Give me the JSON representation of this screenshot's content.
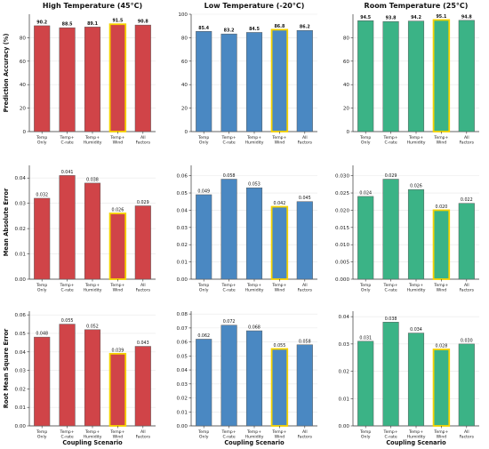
{
  "columns": [
    {
      "title": "High Temperature (45°C)",
      "color": "#d04448"
    },
    {
      "title": "Low Temperature (-20°C)",
      "color": "#4a88c2"
    },
    {
      "title": "Room Temperature (25°C)",
      "color": "#3bb386"
    }
  ],
  "highlight": {
    "category": "Temp+ Wind",
    "color": "#f5d200"
  },
  "chart_data": [
    {
      "type": "bar",
      "row": "Prediction Accuracy (%)",
      "column": "High Temperature (45°C)",
      "title": "High Temperature (45°C)",
      "ylabel": "Prediction Accuracy (%)",
      "xlabel": "",
      "categories": [
        "Temp Only",
        "Temp+ C-rate",
        "Temp+ Humidity",
        "Temp+ Wind",
        "All Factors"
      ],
      "values": [
        90.2,
        88.5,
        89.1,
        91.5,
        90.8
      ],
      "labels": [
        "90.2",
        "88.5",
        "89.1",
        "91.5",
        "90.8"
      ],
      "ylim": [
        0,
        100
      ],
      "yticks": [
        0,
        20,
        40,
        60,
        80
      ],
      "grid": true
    },
    {
      "type": "bar",
      "row": "Prediction Accuracy (%)",
      "column": "Low Temperature (-20°C)",
      "title": "Low Temperature (-20°C)",
      "ylabel": "",
      "xlabel": "",
      "categories": [
        "Temp Only",
        "Temp+ C-rate",
        "Temp+ Humidity",
        "Temp+ Wind",
        "All Factors"
      ],
      "values": [
        85.4,
        83.2,
        84.5,
        86.8,
        86.2
      ],
      "labels": [
        "85.4",
        "83.2",
        "84.5",
        "86.8",
        "86.2"
      ],
      "ylim": [
        0,
        100
      ],
      "yticks": [
        0,
        20,
        40,
        60,
        80,
        100
      ],
      "grid": true
    },
    {
      "type": "bar",
      "row": "Prediction Accuracy (%)",
      "column": "Room Temperature (25°C)",
      "title": "Room Temperature (25°C)",
      "ylabel": "",
      "xlabel": "",
      "categories": [
        "Temp Only",
        "Temp+ C-rate",
        "Temp+ Humidity",
        "Temp+ Wind",
        "All Factors"
      ],
      "values": [
        94.5,
        93.8,
        94.2,
        95.1,
        94.8
      ],
      "labels": [
        "94.5",
        "93.8",
        "94.2",
        "95.1",
        "94.8"
      ],
      "ylim": [
        0,
        100
      ],
      "yticks": [
        0,
        20,
        40,
        60,
        80
      ],
      "grid": true
    },
    {
      "type": "bar",
      "row": "Mean Absolute Error",
      "column": "High Temperature (45°C)",
      "title": "",
      "ylabel": "Mean Absolute Error",
      "xlabel": "",
      "categories": [
        "Temp Only",
        "Temp+ C-rate",
        "Temp+ Humidity",
        "Temp+ Wind",
        "All Factors"
      ],
      "values": [
        0.032,
        0.041,
        0.038,
        0.026,
        0.029
      ],
      "labels": [
        "0.032",
        "0.041",
        "0.038",
        "0.026",
        "0.029"
      ],
      "ylim": [
        0,
        0.045
      ],
      "yticks": [
        0.0,
        0.01,
        0.02,
        0.03,
        0.04
      ],
      "ytick_labels": [
        "0.00",
        "0.01",
        "0.02",
        "0.03",
        "0.04"
      ],
      "grid": true
    },
    {
      "type": "bar",
      "row": "Mean Absolute Error",
      "column": "Low Temperature (-20°C)",
      "title": "",
      "ylabel": "",
      "xlabel": "",
      "categories": [
        "Temp Only",
        "Temp+ C-rate",
        "Temp+ Humidity",
        "Temp+ Wind",
        "All Factors"
      ],
      "values": [
        0.049,
        0.058,
        0.053,
        0.042,
        0.045
      ],
      "labels": [
        "0.049",
        "0.058",
        "0.053",
        "0.042",
        "0.045"
      ],
      "ylim": [
        0,
        0.066
      ],
      "yticks": [
        0.0,
        0.01,
        0.02,
        0.03,
        0.04,
        0.05,
        0.06
      ],
      "ytick_labels": [
        "0.00",
        "0.01",
        "0.02",
        "0.03",
        "0.04",
        "0.05",
        "0.06"
      ],
      "grid": true
    },
    {
      "type": "bar",
      "row": "Mean Absolute Error",
      "column": "Room Temperature (25°C)",
      "title": "",
      "ylabel": "",
      "xlabel": "",
      "categories": [
        "Temp Only",
        "Temp+ C-rate",
        "Temp+ Humidity",
        "Temp+ Wind",
        "All Factors"
      ],
      "values": [
        0.024,
        0.029,
        0.026,
        0.02,
        0.022
      ],
      "labels": [
        "0.024",
        "0.029",
        "0.026",
        "0.020",
        "0.022"
      ],
      "ylim": [
        0,
        0.033
      ],
      "yticks": [
        0.0,
        0.005,
        0.01,
        0.015,
        0.02,
        0.025,
        0.03
      ],
      "ytick_labels": [
        "0.000",
        "0.005",
        "0.010",
        "0.015",
        "0.020",
        "0.025",
        "0.030"
      ],
      "grid": true
    },
    {
      "type": "bar",
      "row": "Root Mean Square Error",
      "column": "High Temperature (45°C)",
      "title": "",
      "ylabel": "Root Mean Square Error",
      "xlabel": "Coupling Scenario",
      "categories": [
        "Temp Only",
        "Temp+ C-rate",
        "Temp+ Humidity",
        "Temp+ Wind",
        "All Factors"
      ],
      "values": [
        0.048,
        0.055,
        0.052,
        0.039,
        0.043
      ],
      "labels": [
        "0.048",
        "0.055",
        "0.052",
        "0.039",
        "0.043"
      ],
      "ylim": [
        0,
        0.062
      ],
      "yticks": [
        0.0,
        0.01,
        0.02,
        0.03,
        0.04,
        0.05,
        0.06
      ],
      "ytick_labels": [
        "0.00",
        "0.01",
        "0.02",
        "0.03",
        "0.04",
        "0.05",
        "0.06"
      ],
      "grid": true
    },
    {
      "type": "bar",
      "row": "Root Mean Square Error",
      "column": "Low Temperature (-20°C)",
      "title": "",
      "ylabel": "",
      "xlabel": "Coupling Scenario",
      "categories": [
        "Temp Only",
        "Temp+ C-rate",
        "Temp+ Humidity",
        "Temp+ Wind",
        "All Factors"
      ],
      "values": [
        0.062,
        0.072,
        0.068,
        0.055,
        0.058
      ],
      "labels": [
        "0.062",
        "0.072",
        "0.068",
        "0.055",
        "0.058"
      ],
      "ylim": [
        0,
        0.082
      ],
      "yticks": [
        0.0,
        0.01,
        0.02,
        0.03,
        0.04,
        0.05,
        0.06,
        0.07,
        0.08
      ],
      "ytick_labels": [
        "0.00",
        "0.01",
        "0.02",
        "0.03",
        "0.04",
        "0.05",
        "0.06",
        "0.07",
        "0.08"
      ],
      "grid": true
    },
    {
      "type": "bar",
      "row": "Root Mean Square Error",
      "column": "Room Temperature (25°C)",
      "title": "",
      "ylabel": "",
      "xlabel": "Coupling Scenario",
      "categories": [
        "Temp Only",
        "Temp+ C-rate",
        "Temp+ Humidity",
        "Temp+ Wind",
        "All Factors"
      ],
      "values": [
        0.031,
        0.038,
        0.034,
        0.028,
        0.03
      ],
      "labels": [
        "0.031",
        "0.038",
        "0.034",
        "0.028",
        "0.030"
      ],
      "ylim": [
        0,
        0.042
      ],
      "yticks": [
        0.0,
        0.01,
        0.02,
        0.03,
        0.04
      ],
      "ytick_labels": [
        "0.00",
        "0.01",
        "0.02",
        "0.03",
        "0.04"
      ],
      "grid": true
    }
  ]
}
